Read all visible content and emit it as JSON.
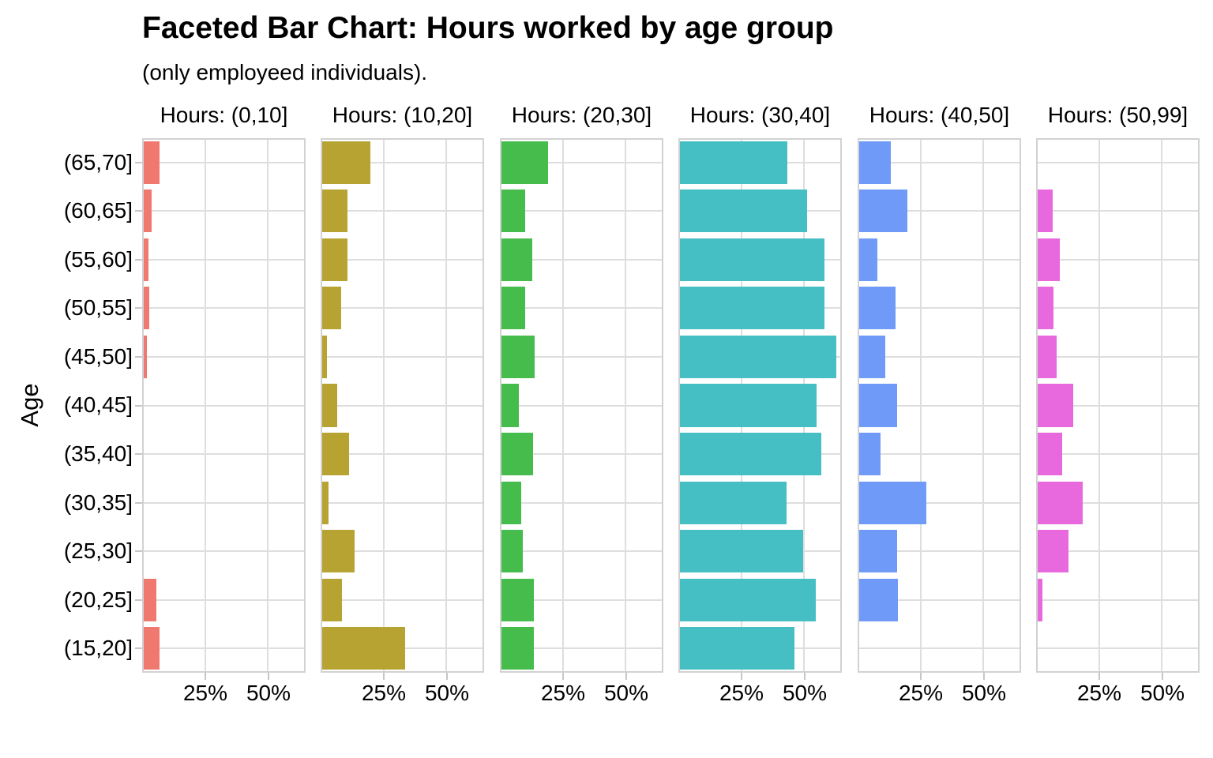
{
  "chart_data": {
    "type": "bar",
    "orientation": "horizontal",
    "title": "Faceted Bar Chart: Hours worked by age group",
    "subtitle": "(only employeed individuals).",
    "ylabel": "Age",
    "values_unit": "percent",
    "x_tick_labels": [
      "25%",
      "50%"
    ],
    "x_tick_values": [
      25,
      50
    ],
    "xlim": [
      0,
      64.7
    ],
    "grid": "major",
    "categories_top_to_bottom": [
      "(65,70]",
      "(60,65]",
      "(55,60]",
      "(50,55]",
      "(45,50]",
      "(40,45]",
      "(35,40]",
      "(30,35]",
      "(25,30]",
      "(20,25]",
      "(15,20]"
    ],
    "facets": [
      {
        "label": "Hours: (0,10]",
        "color": "#f0796f",
        "values": [
          6.3,
          3.1,
          1.9,
          2.2,
          1.3,
          0,
          0,
          0,
          0,
          5.0,
          6.3
        ]
      },
      {
        "label": "Hours: (10,20]",
        "color": "#b6a331",
        "values": [
          19.3,
          10.1,
          10.1,
          7.6,
          1.9,
          5.9,
          10.8,
          2.5,
          13.0,
          8.1,
          33.4
        ]
      },
      {
        "label": "Hours: (20,30]",
        "color": "#46bc4d",
        "values": [
          18.8,
          9.6,
          12.3,
          9.6,
          13.3,
          7.1,
          12.7,
          8.0,
          8.6,
          13.0,
          13.0
        ]
      },
      {
        "label": "Hours: (30,40]",
        "color": "#45bfc4",
        "values": [
          43.5,
          51.2,
          58.3,
          58.3,
          63.0,
          55.2,
          57.1,
          42.9,
          49.7,
          54.9,
          46.3
        ]
      },
      {
        "label": "Hours: (40,50]",
        "color": "#6f9af8",
        "values": [
          12.7,
          19.4,
          7.4,
          14.8,
          10.5,
          15.4,
          8.6,
          27.2,
          15.4,
          15.7,
          0
        ]
      },
      {
        "label": "Hours: (50,99]",
        "color": "#e868de",
        "values": [
          0,
          5.9,
          9.0,
          6.5,
          7.7,
          14.5,
          9.9,
          18.2,
          12.3,
          1.9,
          0
        ]
      }
    ]
  }
}
